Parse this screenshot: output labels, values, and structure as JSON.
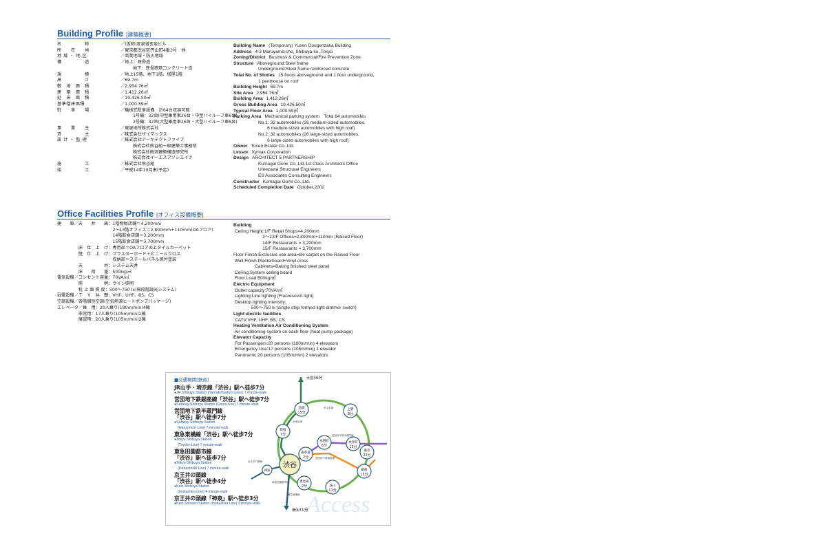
{
  "building_profile": {
    "title": "Building Profile",
    "title_jp": "[建築概要]",
    "jp_rows": [
      {
        "label": "名　　　　　称",
        "value": "／(仮称)友泉道玄坂ビル"
      },
      {
        "label": "所　　在　　地",
        "value": "／東京都渋谷区円山町4番3号　他"
      },
      {
        "label": "地 域 ・ 地 区",
        "value": "／商業地域・防火地域"
      },
      {
        "label": "構　　　　　造",
        "value": "／地上：鉄骨造"
      },
      {
        "label": "",
        "value": "地下：鉄骨鉄筋コンクリート造"
      },
      {
        "label": "規　　　　　模",
        "value": "／地上15階、地下1階、塔屋1階"
      },
      {
        "label": "高　　　　　さ",
        "value": "／69.7m"
      },
      {
        "label": "敷　地　面　積",
        "value": "／2,954.76㎡"
      },
      {
        "label": "建　築　面　積",
        "value": "／1,412.26㎡"
      },
      {
        "label": "延　床　面　積",
        "value": "／19,426.50㎡"
      },
      {
        "label": "基準階床面積",
        "value": "／1,000.59㎡"
      },
      {
        "label": "駐　　車　　場",
        "value": "／機械式駐車設備　計64台収容可能"
      },
      {
        "label": "",
        "value": "1号機：32台(中型乗用車26台・中型ハイルーフ車6台)"
      },
      {
        "label": "",
        "value": "2号機：32台(大型乗用車26台・大型ハイルーフ車6台)"
      },
      {
        "label": "事　　業　　主",
        "value": "／東泉地所株式会社"
      },
      {
        "label": "貸　　　　　主",
        "value": "／株式会社ザイマックス"
      },
      {
        "label": "設 計 ・ 監 理",
        "value": "／株式会社アーキテクトファイブ"
      },
      {
        "label": "",
        "value": "株式会社熊谷組一級建築士事務所"
      },
      {
        "label": "",
        "value": "株式会社梅沢建築構造研究所"
      },
      {
        "label": "",
        "value": "株式会社イーエスアソシエイツ"
      },
      {
        "label": "施　　　　　工",
        "value": "／株式会社熊谷組"
      },
      {
        "label": "竣　　　　　工",
        "value": "／平成14年10月末(予定)"
      }
    ],
    "en_rows": [
      {
        "label": "Building Name",
        "value": "(Temporary) Yusen Dougenzaka Building"
      },
      {
        "label": "Address",
        "value": "4-3 Maruyama-cho, Shibuya-ku, Tokyo"
      },
      {
        "label": "Zoning/District",
        "value": "Business & Commercial/Fire Prevention Zone"
      },
      {
        "label": "Structure",
        "value": "Aboveground:Steel frame"
      },
      {
        "label": "",
        "value": "Underground:Steel frame reinforced concrete",
        "indent": true
      },
      {
        "label": "Total No. of Stories",
        "value": "15 floors aboveground and 1 floor underground,"
      },
      {
        "label": "",
        "value": "1 penthouse on roof",
        "indent": true
      },
      {
        "label": "Building Height",
        "value": "69.7m"
      },
      {
        "label": "Site Area",
        "value": "2,954.76㎡"
      },
      {
        "label": "Building Area",
        "value": "1,412.26㎡"
      },
      {
        "label": "Gross Building Area",
        "value": "19,426.50㎡"
      },
      {
        "label": "Typical Floor Area",
        "value": "1,000.59㎡"
      },
      {
        "label": "Parking Area",
        "value": "Mechanical parking system　Total 64 automobiles"
      },
      {
        "label": "",
        "value": "No.1: 32 automobiles (26 medium-sized automobiles,",
        "indent": true
      },
      {
        "label": "",
        "value": "　　6 medium-sized automobiles with high roof)",
        "indent": true
      },
      {
        "label": "",
        "value": "No.2: 32 automobiles (26 large-sized automobiles,",
        "indent": true
      },
      {
        "label": "",
        "value": "　　6 large-sized automobiles with high roof)",
        "indent": true
      },
      {
        "label": "Owner",
        "value": "Tosen Estate Co.,Ltd."
      },
      {
        "label": "Lessor",
        "value": "Xymax Corporation"
      },
      {
        "label": "Design",
        "value": "ARCHITECT 5 PARTNERSHIP"
      },
      {
        "label": "",
        "value": "Kumagai Gumi Co.,Ltd.1st Class Architects Office",
        "indent": true
      },
      {
        "label": "",
        "value": "Umezawa Structural Engineers",
        "indent": true
      },
      {
        "label": "",
        "value": "ES Associates Consulting Engineers",
        "indent": true
      },
      {
        "label": "Constructor",
        "value": "Kumagai Gumi Co.,Ltd."
      },
      {
        "label": "Scheduled Completion Date",
        "value": "October,2002"
      }
    ]
  },
  "office_profile": {
    "title": "Office Facilities Profile",
    "title_jp": "[オフィス設備概要]",
    "jp_lines": [
      "建　　築／天　　井　　高：1階物販店舗＝4,200mm",
      "　　　　　　　　　　　　　2〜13階オフィス＝2,800mm+110mm(OAフロア)",
      "　　　　　　　　　　　　　14階飲食店舗＝3,200mm",
      "　　　　　　　　　　　　　15階飲食店舗＝3,700mm",
      "　　　　　床　仕　上　げ：専用部＝OAフロアの上タイルカーペット",
      "　　　　　壁　仕　上　げ：プラスターボード＋ビニールクロス",
      "　　　　　　　　　　　　　収納部＝スチールパネル焼付塗装",
      "　　　　　天　　　　　井：システム天井",
      "　　　　　床　　荷　　重：500kg/㎡",
      "電気設備／コンセント容量：70VA/㎡",
      "　　　　　照　　　　　明：ライン照明",
      "　　　　　机 上 面 照 度：500〜750 lx(無段階調光システム)",
      "弱電設備／Ｔ　Ｖ　共　聴：VHF、UHF、BS、CS",
      "空調設備／各階個別空調(空気熱源ヒートポンプパッケージ)",
      "エレベータ／乗　用：20人乗り(180m/min)4機",
      "　　　　　非常用：17人乗り(105m/min)1機",
      "　　　　　展望用：20人乗り(105m/min)2機"
    ],
    "en_lines": [
      {
        "text": "Building",
        "bold": true
      },
      {
        "text": " Ceiling Height:1/F Retail Shops=4,200mm"
      },
      {
        "text": "                       2〜13/F Offices=2,800mm+110mm (Raised Floor)"
      },
      {
        "text": "                       14/F Restaurants = 3,200mm"
      },
      {
        "text": "                       15/F Restaurants = 3,700mm"
      },
      {
        "text": "Floor Finish:Exclusive use area=tile carpet on the Raised Floor"
      },
      {
        "text": " Wall Finish:Plasterboard+Vinyl cross"
      },
      {
        "text": "                 Cabinets=Baking finished steel panel"
      },
      {
        "text": " Ceiling:System ceiling board"
      },
      {
        "text": " Floor Load:500kg/㎡"
      },
      {
        "text": "Electric Equipment",
        "bold": true
      },
      {
        "text": " Outlet capacity:70VA/㎡"
      },
      {
        "text": " Lighting:Line lighting (Fluorescent light)"
      },
      {
        "text": " Desktop lighting intensity:"
      },
      {
        "text": "              500〜750 lx (single step formed light dimmer switch)"
      },
      {
        "text": "Light electric facilities",
        "bold": true
      },
      {
        "text": " CATV:VHF, UHF, BS, CS"
      },
      {
        "text": "Heating Ventilation Air Conditioning System",
        "bold": true
      },
      {
        "text": " Air conditioning system on each floor (heat pump package)"
      },
      {
        "text": "Elevator Capacity",
        "bold": true
      },
      {
        "text": " For Passengers:20 persons (180m/min) 4 elevators"
      },
      {
        "text": " Emergency Use:17 persons (105m/min) 1 elevator"
      },
      {
        "text": " Panoramic:20 persons (105m/min) 2 elevators"
      }
    ]
  },
  "access": {
    "heading": "■交通機関[鉄道]",
    "routes": [
      {
        "ja": [
          "JR山手・埼京線「渋谷」駅へ徒歩7分"
        ],
        "en": [
          "●JR Shibuya Station (Yamate/Saikyo Lines) 7 minute-walk"
        ]
      },
      {
        "ja": [
          "営団地下鉄銀座線「渋谷」駅へ徒歩7分"
        ],
        "en": [
          "●Subway Shibuya Station (Ginza Line) 7 minute-walk"
        ]
      },
      {
        "ja": [
          "営団地下鉄半蔵門線",
          "「渋谷」駅へ徒歩7分"
        ],
        "en": [
          "●Subway Shibuya Station",
          "　(Hanzomon Line) 7 minute-walk"
        ]
      },
      {
        "ja": [
          "東急東横線「渋谷」駅へ徒歩7分"
        ],
        "en": [
          "●Tokyu Shibuya Station",
          "　(Toyoko Line) 7 minute-walk"
        ]
      },
      {
        "ja": [
          "東急田園都市線",
          "「渋谷」駅へ徒歩7分"
        ],
        "en": [
          "●Tokyu Shibuya Station",
          "　(Denentoshi Line) 7 minute-walk"
        ]
      },
      {
        "ja": [
          "京王井の頭線",
          "「渋谷」駅へ徒歩4分"
        ],
        "en": [
          "●Keio Shibuya Station",
          "　(Inokashira Line) 4 minute-walk"
        ]
      },
      {
        "ja": [
          "京王井の頭線「神泉」駅へ徒歩3分"
        ],
        "en": [
          "●Keio Shinsen Station (Inokashira Line) 3 minute-walk"
        ]
      }
    ],
    "map": {
      "hub": "渋谷",
      "stations": [
        {
          "name": "池袋",
          "time": "15分"
        },
        {
          "name": "上野",
          "time": "8分"
        },
        {
          "name": "新宿",
          "time": "7分"
        },
        {
          "name": "永田町",
          "time": "6分"
        },
        {
          "name": "大手町",
          "time": "15分"
        },
        {
          "name": "東京",
          "time": "22分"
        },
        {
          "name": "表参道",
          "time": "2分"
        },
        {
          "name": "銀座",
          "time": "15分"
        },
        {
          "name": "恵比寿",
          "time": "2分"
        },
        {
          "name": "品川",
          "time": "11分"
        },
        {
          "name": "神泉",
          "time": ""
        }
      ],
      "terminals": [
        {
          "name": "大宮",
          "time": "36分"
        },
        {
          "name": "横浜",
          "time": "31分"
        }
      ],
      "line_labels": [
        "JR山手線",
        "JR埼京線",
        "営団地下鉄半蔵門線",
        "営団地下鉄銀座線",
        "京王井の頭線",
        "東急田園都市線",
        "東急東横線"
      ],
      "colors": {
        "yamanote": "#6ab04c",
        "saikyo": "#2e7d4f",
        "hanzomon": "#8a5cc0",
        "ginza": "#f08a24",
        "toyoko": "#2f5f6f",
        "hub": "#f3efc2"
      },
      "watermark": "Access"
    }
  }
}
